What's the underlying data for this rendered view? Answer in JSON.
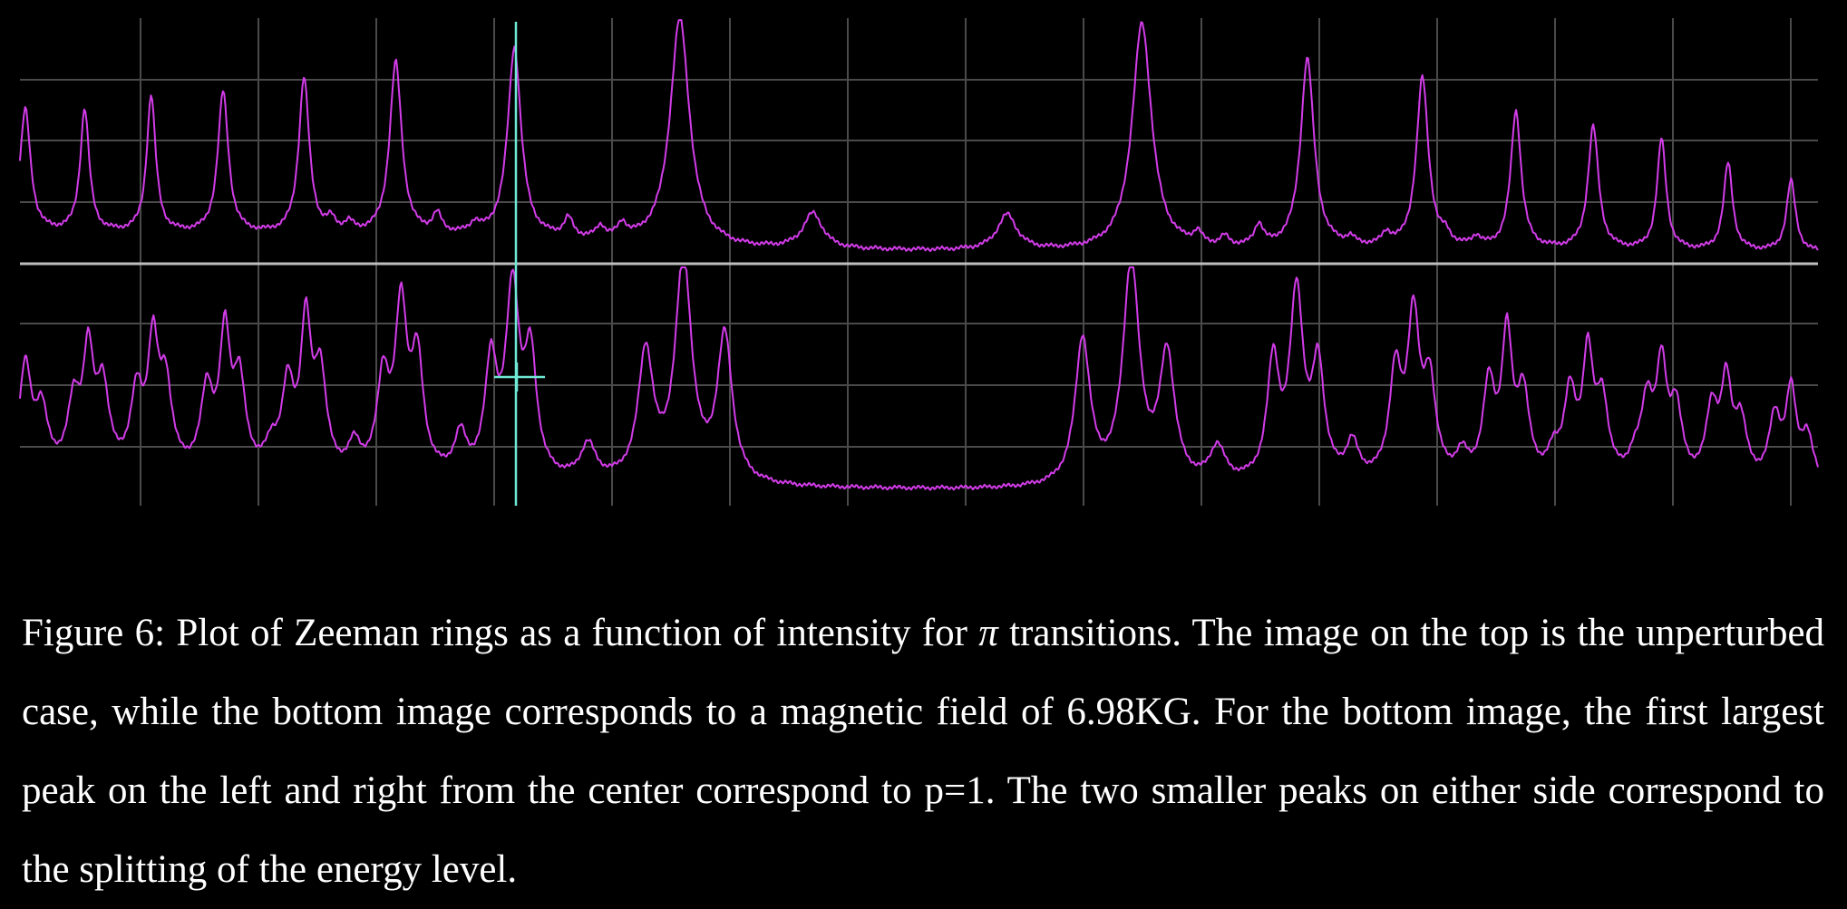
{
  "colors": {
    "background": "#000000",
    "grid": "#4a4a4a",
    "separator": "#bdbdbd",
    "trace": "#d23ce8",
    "cursor": "#6fe9d6",
    "caption_text": "#ffffff"
  },
  "caption": {
    "figure_label": "Figure 6:",
    "part1": "Plot of Zeeman rings as a function of intensity for",
    "symbol": "π",
    "part2": "transitions. The image on the top is the unperturbed case, while the bottom image corresponds to a magnetic field of 6.98KG. For the bottom image, the first largest peak on the left and right from the center correspond to p=1. The two smaller peaks on either side correspond to the splitting of the energy level."
  },
  "chart_data": [
    {
      "type": "line",
      "panel": "top",
      "description_of_axes": "unlabeled; grid only",
      "grid": true,
      "xlim": [
        0,
        1
      ],
      "ylim": [
        0,
        1
      ],
      "series": [
        {
          "baseline": [
            {
              "x": 0.0,
              "y": 0.1
            },
            {
              "x": 0.26,
              "y": 0.08
            },
            {
              "x": 0.4,
              "y": 0.03
            },
            {
              "x": 0.6,
              "y": 0.02
            },
            {
              "x": 0.74,
              "y": 0.03
            },
            {
              "x": 1.0,
              "y": 0.02
            }
          ],
          "peaks": [
            {
              "x": 0.003,
              "height": 0.52,
              "width": 0.0035
            },
            {
              "x": 0.036,
              "height": 0.52,
              "width": 0.003
            },
            {
              "x": 0.073,
              "height": 0.58,
              "width": 0.003
            },
            {
              "x": 0.113,
              "height": 0.6,
              "width": 0.0035
            },
            {
              "x": 0.158,
              "height": 0.66,
              "width": 0.0035
            },
            {
              "x": 0.173,
              "height": 0.05,
              "width": 0.003
            },
            {
              "x": 0.183,
              "height": 0.04,
              "width": 0.003
            },
            {
              "x": 0.209,
              "height": 0.73,
              "width": 0.004
            },
            {
              "x": 0.232,
              "height": 0.08,
              "width": 0.003
            },
            {
              "x": 0.253,
              "height": 0.04,
              "width": 0.003
            },
            {
              "x": 0.275,
              "height": 0.8,
              "width": 0.0045
            },
            {
              "x": 0.305,
              "height": 0.08,
              "width": 0.003
            },
            {
              "x": 0.323,
              "height": 0.05,
              "width": 0.003
            },
            {
              "x": 0.335,
              "height": 0.06,
              "width": 0.003
            },
            {
              "x": 0.367,
              "height": 0.96,
              "width": 0.0065
            },
            {
              "x": 0.441,
              "height": 0.15,
              "width": 0.0065
            },
            {
              "x": 0.549,
              "height": 0.15,
              "width": 0.0065
            },
            {
              "x": 0.624,
              "height": 0.96,
              "width": 0.0065
            },
            {
              "x": 0.655,
              "height": 0.05,
              "width": 0.003
            },
            {
              "x": 0.67,
              "height": 0.04,
              "width": 0.003
            },
            {
              "x": 0.689,
              "height": 0.09,
              "width": 0.003
            },
            {
              "x": 0.716,
              "height": 0.8,
              "width": 0.0045
            },
            {
              "x": 0.74,
              "height": 0.03,
              "width": 0.003
            },
            {
              "x": 0.76,
              "height": 0.05,
              "width": 0.003
            },
            {
              "x": 0.78,
              "height": 0.72,
              "width": 0.004
            },
            {
              "x": 0.793,
              "height": 0.04,
              "width": 0.003
            },
            {
              "x": 0.81,
              "height": 0.04,
              "width": 0.003
            },
            {
              "x": 0.832,
              "height": 0.58,
              "width": 0.0035
            },
            {
              "x": 0.875,
              "height": 0.52,
              "width": 0.0035
            },
            {
              "x": 0.913,
              "height": 0.47,
              "width": 0.003
            },
            {
              "x": 0.95,
              "height": 0.37,
              "width": 0.003
            },
            {
              "x": 0.985,
              "height": 0.3,
              "width": 0.003
            }
          ]
        }
      ]
    },
    {
      "type": "line",
      "panel": "bottom",
      "description_of_axes": "unlabeled; grid only",
      "grid": true,
      "xlim": [
        0,
        1
      ],
      "ylim": [
        0,
        1
      ],
      "series": [
        {
          "baseline": [
            {
              "x": 0.0,
              "y": 0.1
            },
            {
              "x": 0.26,
              "y": 0.06
            },
            {
              "x": 0.4,
              "y": 0.04
            },
            {
              "x": 0.6,
              "y": 0.03
            },
            {
              "x": 0.74,
              "y": 0.05
            },
            {
              "x": 1.0,
              "y": 0.04
            }
          ],
          "peaks": [
            {
              "x": 0.003,
              "height": 0.45,
              "width": 0.004
            },
            {
              "x": 0.012,
              "height": 0.25,
              "width": 0.004
            },
            {
              "x": 0.03,
              "height": 0.28,
              "width": 0.004
            },
            {
              "x": 0.038,
              "height": 0.48,
              "width": 0.0035
            },
            {
              "x": 0.046,
              "height": 0.35,
              "width": 0.004
            },
            {
              "x": 0.065,
              "height": 0.32,
              "width": 0.004
            },
            {
              "x": 0.074,
              "height": 0.52,
              "width": 0.0035
            },
            {
              "x": 0.081,
              "height": 0.36,
              "width": 0.004
            },
            {
              "x": 0.104,
              "height": 0.34,
              "width": 0.004
            },
            {
              "x": 0.114,
              "height": 0.57,
              "width": 0.0035
            },
            {
              "x": 0.122,
              "height": 0.38,
              "width": 0.004
            },
            {
              "x": 0.14,
              "height": 0.1,
              "width": 0.004
            },
            {
              "x": 0.149,
              "height": 0.36,
              "width": 0.004
            },
            {
              "x": 0.159,
              "height": 0.62,
              "width": 0.0035
            },
            {
              "x": 0.167,
              "height": 0.42,
              "width": 0.004
            },
            {
              "x": 0.186,
              "height": 0.12,
              "width": 0.004
            },
            {
              "x": 0.202,
              "height": 0.4,
              "width": 0.004
            },
            {
              "x": 0.212,
              "height": 0.7,
              "width": 0.004
            },
            {
              "x": 0.221,
              "height": 0.48,
              "width": 0.004
            },
            {
              "x": 0.245,
              "height": 0.17,
              "width": 0.004
            },
            {
              "x": 0.262,
              "height": 0.48,
              "width": 0.004
            },
            {
              "x": 0.274,
              "height": 0.8,
              "width": 0.0045
            },
            {
              "x": 0.284,
              "height": 0.5,
              "width": 0.004
            },
            {
              "x": 0.316,
              "height": 0.15,
              "width": 0.005
            },
            {
              "x": 0.348,
              "height": 0.55,
              "width": 0.005
            },
            {
              "x": 0.369,
              "height": 0.96,
              "width": 0.0055
            },
            {
              "x": 0.392,
              "height": 0.63,
              "width": 0.005
            },
            {
              "x": 0.591,
              "height": 0.63,
              "width": 0.005
            },
            {
              "x": 0.618,
              "height": 0.96,
              "width": 0.0055
            },
            {
              "x": 0.638,
              "height": 0.55,
              "width": 0.005
            },
            {
              "x": 0.666,
              "height": 0.15,
              "width": 0.005
            },
            {
              "x": 0.697,
              "height": 0.5,
              "width": 0.004
            },
            {
              "x": 0.71,
              "height": 0.8,
              "width": 0.0045
            },
            {
              "x": 0.722,
              "height": 0.48,
              "width": 0.004
            },
            {
              "x": 0.741,
              "height": 0.15,
              "width": 0.004
            },
            {
              "x": 0.765,
              "height": 0.45,
              "width": 0.004
            },
            {
              "x": 0.775,
              "height": 0.68,
              "width": 0.004
            },
            {
              "x": 0.784,
              "height": 0.4,
              "width": 0.004
            },
            {
              "x": 0.802,
              "height": 0.1,
              "width": 0.004
            },
            {
              "x": 0.817,
              "height": 0.4,
              "width": 0.004
            },
            {
              "x": 0.827,
              "height": 0.6,
              "width": 0.0035
            },
            {
              "x": 0.836,
              "height": 0.36,
              "width": 0.004
            },
            {
              "x": 0.853,
              "height": 0.1,
              "width": 0.004
            },
            {
              "x": 0.862,
              "height": 0.36,
              "width": 0.004
            },
            {
              "x": 0.872,
              "height": 0.52,
              "width": 0.0035
            },
            {
              "x": 0.88,
              "height": 0.33,
              "width": 0.004
            },
            {
              "x": 0.898,
              "height": 0.08,
              "width": 0.004
            },
            {
              "x": 0.905,
              "height": 0.32,
              "width": 0.004
            },
            {
              "x": 0.913,
              "height": 0.46,
              "width": 0.0035
            },
            {
              "x": 0.921,
              "height": 0.3,
              "width": 0.004
            },
            {
              "x": 0.941,
              "height": 0.3,
              "width": 0.004
            },
            {
              "x": 0.949,
              "height": 0.4,
              "width": 0.0035
            },
            {
              "x": 0.957,
              "height": 0.25,
              "width": 0.004
            },
            {
              "x": 0.976,
              "height": 0.27,
              "width": 0.004
            },
            {
              "x": 0.985,
              "height": 0.38,
              "width": 0.0035
            },
            {
              "x": 0.994,
              "height": 0.2,
              "width": 0.004
            }
          ]
        }
      ]
    }
  ]
}
